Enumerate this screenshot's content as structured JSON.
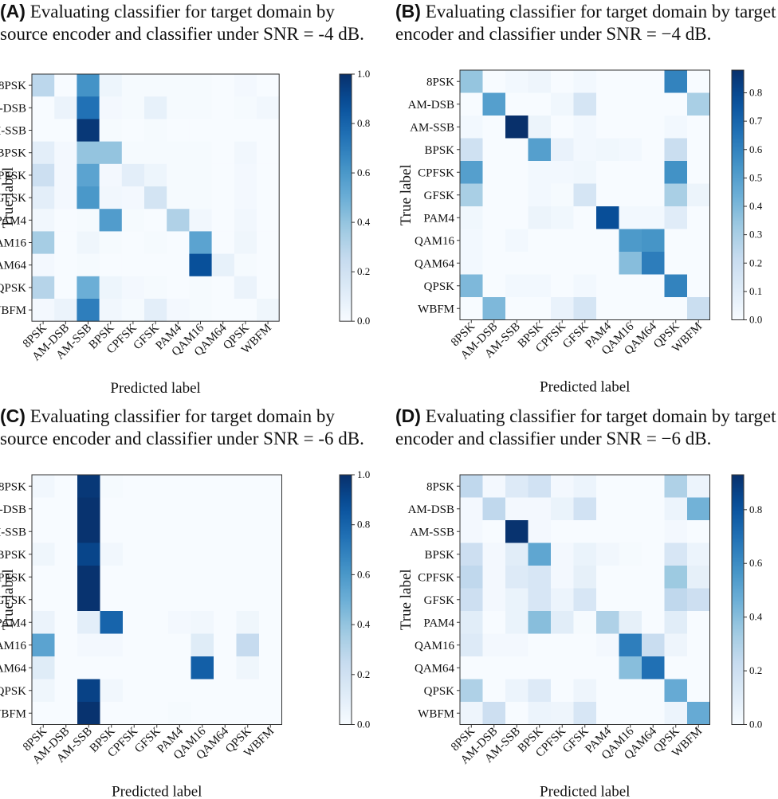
{
  "chart_data": [
    {
      "type": "heatmap",
      "panel_letter": "(A)",
      "title": "Evaluating classifier for target domain by source encoder and classifier under SNR = -4 dB.",
      "xlabel": "Predicted label",
      "ylabel": "True label",
      "labels": [
        "8PSK",
        "AM-DSB",
        "AM-SSB",
        "BPSK",
        "CPFSK",
        "GFSK",
        "PAM4",
        "QAM16",
        "QAM64",
        "QPSK",
        "WBFM"
      ],
      "colorbar": {
        "vmin": 0.0,
        "vmax": 1.0,
        "ticks": [
          "0.0",
          "0.2",
          "0.4",
          "0.6",
          "0.8",
          "1.0"
        ]
      },
      "matrix": [
        [
          0.28,
          0.0,
          0.62,
          0.05,
          0.01,
          0.01,
          0.01,
          0.01,
          0.0,
          0.02,
          0.0
        ],
        [
          0.0,
          0.06,
          0.75,
          0.02,
          0.01,
          0.08,
          0.01,
          0.01,
          0.0,
          0.01,
          0.03
        ],
        [
          0.0,
          0.0,
          0.97,
          0.01,
          0.0,
          0.01,
          0.0,
          0.0,
          0.0,
          0.0,
          0.0
        ],
        [
          0.1,
          0.02,
          0.4,
          0.4,
          0.01,
          0.01,
          0.01,
          0.01,
          0.0,
          0.03,
          0.0
        ],
        [
          0.22,
          0.02,
          0.55,
          0.02,
          0.1,
          0.05,
          0.01,
          0.01,
          0.0,
          0.02,
          0.0
        ],
        [
          0.1,
          0.02,
          0.6,
          0.03,
          0.02,
          0.18,
          0.01,
          0.01,
          0.0,
          0.02,
          0.0
        ],
        [
          0.03,
          0.0,
          0.01,
          0.58,
          0.01,
          0.0,
          0.32,
          0.03,
          0.0,
          0.03,
          0.0
        ],
        [
          0.35,
          0.0,
          0.04,
          0.01,
          0.0,
          0.01,
          0.0,
          0.55,
          0.0,
          0.04,
          0.0
        ],
        [
          0.02,
          0.0,
          0.01,
          0.0,
          0.0,
          0.0,
          0.0,
          0.88,
          0.08,
          0.01,
          0.0
        ],
        [
          0.3,
          0.0,
          0.5,
          0.05,
          0.02,
          0.01,
          0.0,
          0.01,
          0.0,
          0.06,
          0.0
        ],
        [
          0.02,
          0.06,
          0.7,
          0.03,
          0.01,
          0.1,
          0.02,
          0.01,
          0.0,
          0.0,
          0.04
        ]
      ]
    },
    {
      "type": "heatmap",
      "panel_letter": "(B)",
      "title": "Evaluating classifier for target domain by target encoder and classifier under SNR = −4 dB.",
      "xlabel": "Predicted label",
      "ylabel": "True label",
      "labels": [
        "8PSK",
        "AM-DSB",
        "AM-SSB",
        "BPSK",
        "CPFSK",
        "GFSK",
        "PAM4",
        "QAM16",
        "QAM64",
        "QPSK",
        "WBFM"
      ],
      "colorbar": {
        "vmin": 0.0,
        "vmax": 0.88,
        "ticks": [
          "0.0",
          "0.1",
          "0.2",
          "0.3",
          "0.4",
          "0.5",
          "0.6",
          "0.7",
          "0.8"
        ]
      },
      "matrix": [
        [
          0.35,
          0.0,
          0.02,
          0.04,
          0.0,
          0.02,
          0.0,
          0.0,
          0.0,
          0.6,
          0.0
        ],
        [
          0.0,
          0.5,
          0.0,
          0.0,
          0.03,
          0.15,
          0.0,
          0.0,
          0.0,
          0.0,
          0.3
        ],
        [
          0.02,
          0.0,
          0.88,
          0.05,
          0.0,
          0.02,
          0.0,
          0.0,
          0.0,
          0.02,
          0.0
        ],
        [
          0.18,
          0.0,
          0.0,
          0.5,
          0.06,
          0.02,
          0.03,
          0.02,
          0.0,
          0.2,
          0.0
        ],
        [
          0.5,
          0.0,
          0.0,
          0.02,
          0.02,
          0.03,
          0.0,
          0.0,
          0.0,
          0.55,
          0.0
        ],
        [
          0.3,
          0.0,
          0.0,
          0.02,
          0.01,
          0.15,
          0.0,
          0.0,
          0.0,
          0.3,
          0.05
        ],
        [
          0.03,
          0.0,
          0.0,
          0.05,
          0.03,
          0.0,
          0.78,
          0.02,
          0.02,
          0.1,
          0.0
        ],
        [
          0.02,
          0.0,
          0.02,
          0.0,
          0.0,
          0.0,
          0.0,
          0.52,
          0.54,
          0.0,
          0.0
        ],
        [
          0.02,
          0.0,
          0.0,
          0.0,
          0.0,
          0.0,
          0.0,
          0.38,
          0.62,
          0.0,
          0.0
        ],
        [
          0.4,
          0.0,
          0.02,
          0.02,
          0.0,
          0.02,
          0.0,
          0.0,
          0.0,
          0.6,
          0.0
        ],
        [
          0.0,
          0.4,
          0.0,
          0.0,
          0.06,
          0.15,
          0.0,
          0.0,
          0.0,
          0.0,
          0.2
        ]
      ]
    },
    {
      "type": "heatmap",
      "panel_letter": "(C)",
      "title": "Evaluating classifier for target domain by source encoder and classifier under SNR = -6 dB.",
      "xlabel": "Predicted label",
      "ylabel": "True label",
      "labels": [
        "8PSK",
        "AM-DSB",
        "AM-SSB",
        "BPSK",
        "CPFSK",
        "GFSK",
        "PAM4",
        "QAM16",
        "QAM64",
        "QPSK",
        "WBFM"
      ],
      "colorbar": {
        "vmin": 0.0,
        "vmax": 1.0,
        "ticks": [
          "0.0",
          "0.2",
          "0.4",
          "0.6",
          "0.8",
          "1.0"
        ]
      },
      "matrix": [
        [
          0.03,
          0.0,
          0.97,
          0.01,
          0.0,
          0.0,
          0.0,
          0.0,
          0.0,
          0.0,
          0.0
        ],
        [
          0.0,
          0.0,
          0.99,
          0.0,
          0.0,
          0.0,
          0.0,
          0.0,
          0.0,
          0.0,
          0.0
        ],
        [
          0.0,
          0.0,
          0.99,
          0.0,
          0.0,
          0.0,
          0.0,
          0.0,
          0.0,
          0.0,
          0.0
        ],
        [
          0.04,
          0.0,
          0.92,
          0.03,
          0.0,
          0.0,
          0.0,
          0.0,
          0.0,
          0.0,
          0.0
        ],
        [
          0.0,
          0.0,
          0.99,
          0.0,
          0.0,
          0.0,
          0.0,
          0.0,
          0.0,
          0.0,
          0.0
        ],
        [
          0.0,
          0.0,
          0.99,
          0.0,
          0.0,
          0.0,
          0.0,
          0.0,
          0.0,
          0.0,
          0.0
        ],
        [
          0.06,
          0.0,
          0.1,
          0.8,
          0.0,
          0.0,
          0.02,
          0.03,
          0.0,
          0.04,
          0.0
        ],
        [
          0.55,
          0.0,
          0.02,
          0.02,
          0.0,
          0.0,
          0.0,
          0.12,
          0.0,
          0.25,
          0.0
        ],
        [
          0.12,
          0.0,
          0.0,
          0.0,
          0.0,
          0.0,
          0.0,
          0.82,
          0.0,
          0.04,
          0.0
        ],
        [
          0.04,
          0.0,
          0.93,
          0.03,
          0.0,
          0.0,
          0.0,
          0.0,
          0.0,
          0.0,
          0.0
        ],
        [
          0.0,
          0.0,
          0.99,
          0.0,
          0.0,
          0.0,
          0.01,
          0.0,
          0.0,
          0.0,
          0.0
        ]
      ]
    },
    {
      "type": "heatmap",
      "panel_letter": "(D)",
      "title": "Evaluating classifier for target domain by target encoder and classifier under SNR = −6 dB.",
      "xlabel": "Predicted label",
      "ylabel": "True label",
      "labels": [
        "8PSK",
        "AM-DSB",
        "AM-SSB",
        "BPSK",
        "CPFSK",
        "GFSK",
        "PAM4",
        "QAM16",
        "QAM64",
        "QPSK",
        "WBFM"
      ],
      "colorbar": {
        "vmin": 0.0,
        "vmax": 0.93,
        "ticks": [
          "0.0",
          "0.2",
          "0.4",
          "0.6",
          "0.8"
        ]
      },
      "matrix": [
        [
          0.25,
          0.02,
          0.12,
          0.18,
          0.02,
          0.05,
          0.0,
          0.0,
          0.0,
          0.3,
          0.05
        ],
        [
          0.02,
          0.25,
          0.02,
          0.02,
          0.06,
          0.18,
          0.0,
          0.0,
          0.0,
          0.05,
          0.45
        ],
        [
          0.02,
          0.0,
          0.92,
          0.02,
          0.0,
          0.0,
          0.0,
          0.0,
          0.0,
          0.02,
          0.0
        ],
        [
          0.2,
          0.02,
          0.1,
          0.5,
          0.02,
          0.06,
          0.03,
          0.01,
          0.0,
          0.15,
          0.05
        ],
        [
          0.25,
          0.02,
          0.12,
          0.15,
          0.02,
          0.08,
          0.0,
          0.0,
          0.0,
          0.35,
          0.08
        ],
        [
          0.2,
          0.02,
          0.06,
          0.15,
          0.05,
          0.15,
          0.0,
          0.0,
          0.0,
          0.25,
          0.2
        ],
        [
          0.1,
          0.0,
          0.06,
          0.4,
          0.1,
          0.01,
          0.3,
          0.08,
          0.0,
          0.1,
          0.0
        ],
        [
          0.12,
          0.02,
          0.02,
          0.0,
          0.0,
          0.0,
          0.02,
          0.65,
          0.22,
          0.04,
          0.0
        ],
        [
          0.0,
          0.0,
          0.0,
          0.0,
          0.0,
          0.0,
          0.0,
          0.4,
          0.7,
          0.0,
          0.0
        ],
        [
          0.3,
          0.0,
          0.05,
          0.12,
          0.0,
          0.04,
          0.0,
          0.0,
          0.0,
          0.48,
          0.0
        ],
        [
          0.04,
          0.2,
          0.0,
          0.05,
          0.04,
          0.15,
          0.0,
          0.0,
          0.0,
          0.05,
          0.48
        ]
      ]
    }
  ]
}
